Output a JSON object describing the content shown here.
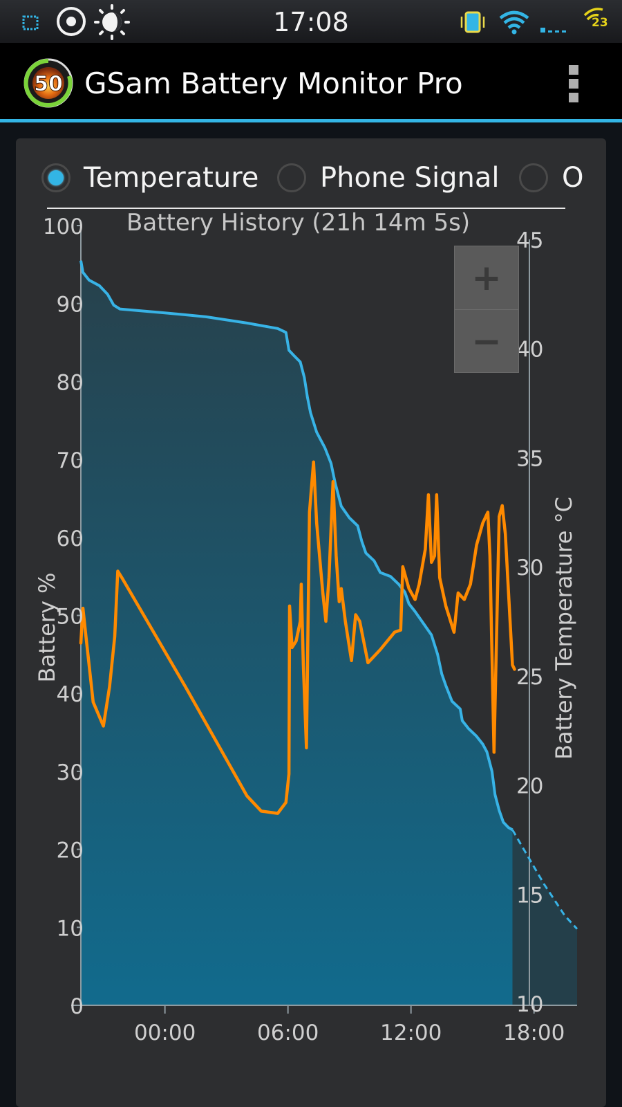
{
  "status_bar": {
    "time": "17:08",
    "signal_badge": "23",
    "icons": [
      "screenshot-icon",
      "target-icon",
      "brightness-icon",
      "vibrate-icon",
      "wifi-icon",
      "signal-bars-icon",
      "signal-badge-icon"
    ]
  },
  "app": {
    "title": "GSam Battery Monitor Pro",
    "logo_value": "50",
    "overflow_icon": "overflow-menu-icon"
  },
  "tabs": {
    "options": [
      "Temperature",
      "Phone Signal",
      "O"
    ],
    "selected": "Temperature"
  },
  "zoom": {
    "plus": "+",
    "minus": "−"
  },
  "colors": {
    "accent": "#33b5e5",
    "battery_line": "#38b3e6",
    "temperature_line": "#ff8a00",
    "fill_top": "#27424d",
    "fill_bottom": "#106e92"
  },
  "chart_data": {
    "type": "line",
    "title": "Battery History (21h 14m 5s)",
    "x_ticks": [
      "00:00",
      "06:00",
      "12:00",
      "18:00"
    ],
    "x_hours_range": [
      -4.1,
      20.1
    ],
    "y_left": {
      "label": "Battery %",
      "ticks": [
        "0",
        "10",
        "20",
        "30",
        "40",
        "50",
        "60",
        "70",
        "80",
        "90",
        "100"
      ],
      "range": [
        0,
        100
      ]
    },
    "y_right": {
      "label": "Battery Temperature °C",
      "ticks": [
        "10",
        "15",
        "20",
        "25",
        "30",
        "35",
        "40",
        "45"
      ],
      "range": [
        9.5,
        45.5
      ]
    },
    "series": [
      {
        "name": "Battery %",
        "axis": "left",
        "points": [
          [
            -4.1,
            95.5
          ],
          [
            -4.0,
            94
          ],
          [
            -3.7,
            93
          ],
          [
            -3.2,
            92.3
          ],
          [
            -2.8,
            91.2
          ],
          [
            -2.5,
            89.8
          ],
          [
            -2.2,
            89.3
          ],
          [
            0,
            88.8
          ],
          [
            2,
            88.3
          ],
          [
            4,
            87.5
          ],
          [
            5.5,
            86.8
          ],
          [
            5.9,
            86.3
          ],
          [
            6.05,
            84
          ],
          [
            6.3,
            83.3
          ],
          [
            6.6,
            82.5
          ],
          [
            6.8,
            80.5
          ],
          [
            6.95,
            78
          ],
          [
            7.1,
            76
          ],
          [
            7.4,
            73.5
          ],
          [
            7.8,
            71.5
          ],
          [
            8.1,
            69.5
          ],
          [
            8.3,
            67
          ],
          [
            8.6,
            64
          ],
          [
            9.0,
            62.5
          ],
          [
            9.4,
            61.5
          ],
          [
            9.6,
            59.5
          ],
          [
            9.8,
            58
          ],
          [
            10.2,
            57
          ],
          [
            10.5,
            55.5
          ],
          [
            11.0,
            55
          ],
          [
            11.4,
            54
          ],
          [
            11.7,
            53
          ],
          [
            11.9,
            51.5
          ],
          [
            12.2,
            50.5
          ],
          [
            12.6,
            49
          ],
          [
            13.0,
            47.5
          ],
          [
            13.3,
            45
          ],
          [
            13.5,
            42.5
          ],
          [
            13.7,
            41
          ],
          [
            14.0,
            39
          ],
          [
            14.4,
            38
          ],
          [
            14.5,
            36.5
          ],
          [
            14.8,
            35.5
          ],
          [
            15.2,
            34.5
          ],
          [
            15.5,
            33.5
          ],
          [
            15.7,
            32.5
          ],
          [
            15.95,
            30
          ],
          [
            16.1,
            27
          ],
          [
            16.3,
            25
          ],
          [
            16.5,
            23.5
          ],
          [
            16.75,
            22.8
          ],
          [
            16.95,
            22.5
          ]
        ]
      },
      {
        "name": "Battery Temperature",
        "axis": "right",
        "points": [
          [
            -4.1,
            26.5
          ],
          [
            -4.0,
            28.1
          ],
          [
            -3.85,
            26.8
          ],
          [
            -3.5,
            23.8
          ],
          [
            -3.0,
            22.7
          ],
          [
            -2.7,
            24.5
          ],
          [
            -2.45,
            26.8
          ],
          [
            -2.3,
            29.8
          ],
          [
            -2.1,
            29.5
          ],
          [
            1.0,
            24.5
          ],
          [
            4.0,
            19.5
          ],
          [
            4.7,
            18.8
          ],
          [
            5.5,
            18.7
          ],
          [
            5.9,
            19.2
          ],
          [
            6.05,
            20.5
          ],
          [
            6.08,
            28.2
          ],
          [
            6.2,
            26.3
          ],
          [
            6.4,
            26.6
          ],
          [
            6.6,
            27.5
          ],
          [
            6.65,
            29.2
          ],
          [
            6.75,
            25.5
          ],
          [
            6.9,
            21.7
          ],
          [
            7.05,
            32.5
          ],
          [
            7.25,
            34.8
          ],
          [
            7.4,
            32
          ],
          [
            7.7,
            28.8
          ],
          [
            7.85,
            27.5
          ],
          [
            8.0,
            29.5
          ],
          [
            8.2,
            33.9
          ],
          [
            8.35,
            30.5
          ],
          [
            8.5,
            28.4
          ],
          [
            8.6,
            29
          ],
          [
            8.8,
            27.5
          ],
          [
            9.1,
            25.7
          ],
          [
            9.3,
            27.8
          ],
          [
            9.5,
            27.5
          ],
          [
            9.9,
            25.6
          ],
          [
            10.5,
            26.2
          ],
          [
            11.2,
            27
          ],
          [
            11.5,
            27.1
          ],
          [
            11.6,
            30
          ],
          [
            11.9,
            29
          ],
          [
            12.2,
            28.5
          ],
          [
            12.4,
            29.2
          ],
          [
            12.7,
            30.8
          ],
          [
            12.85,
            33.3
          ],
          [
            13.0,
            30.2
          ],
          [
            13.15,
            30.5
          ],
          [
            13.25,
            33.3
          ],
          [
            13.4,
            29.5
          ],
          [
            13.7,
            28.2
          ],
          [
            14.1,
            27
          ],
          [
            14.3,
            28.8
          ],
          [
            14.6,
            28.5
          ],
          [
            14.9,
            29.2
          ],
          [
            15.2,
            31
          ],
          [
            15.5,
            32
          ],
          [
            15.75,
            32.5
          ],
          [
            15.85,
            30.5
          ],
          [
            16.05,
            21.5
          ],
          [
            16.3,
            32.3
          ],
          [
            16.45,
            32.8
          ],
          [
            16.6,
            31.5
          ],
          [
            16.95,
            25.5
          ],
          [
            17.05,
            25.3
          ]
        ]
      },
      {
        "name": "Projected battery",
        "axis": "left",
        "style": "dashed",
        "points": [
          [
            16.95,
            22.5
          ],
          [
            17.5,
            20
          ],
          [
            18.5,
            15.5
          ],
          [
            19.5,
            11.5
          ],
          [
            20.1,
            9.8
          ]
        ]
      }
    ]
  }
}
